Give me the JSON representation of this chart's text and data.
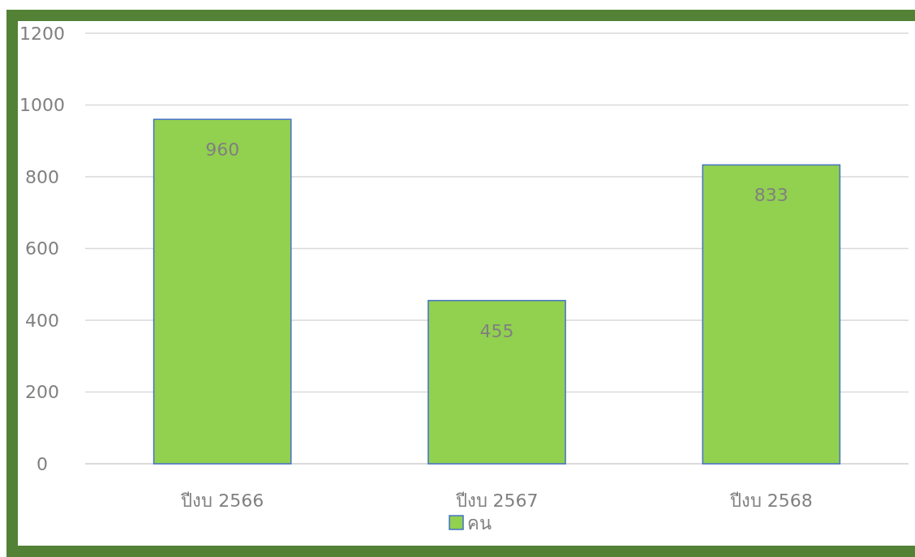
{
  "chart_data": {
    "type": "bar",
    "categories": [
      "ปีงบ 2566",
      "ปีงบ 2567",
      "ปีงบ 2568"
    ],
    "series": [
      {
        "name": "คน",
        "color": "#92d050",
        "values": [
          960,
          455,
          833
        ]
      }
    ],
    "ylim": [
      0,
      1200
    ],
    "yticks": [
      0,
      200,
      400,
      600,
      800,
      1000,
      1200
    ],
    "grid": "y",
    "legend": "bottom",
    "data_labels": true
  }
}
